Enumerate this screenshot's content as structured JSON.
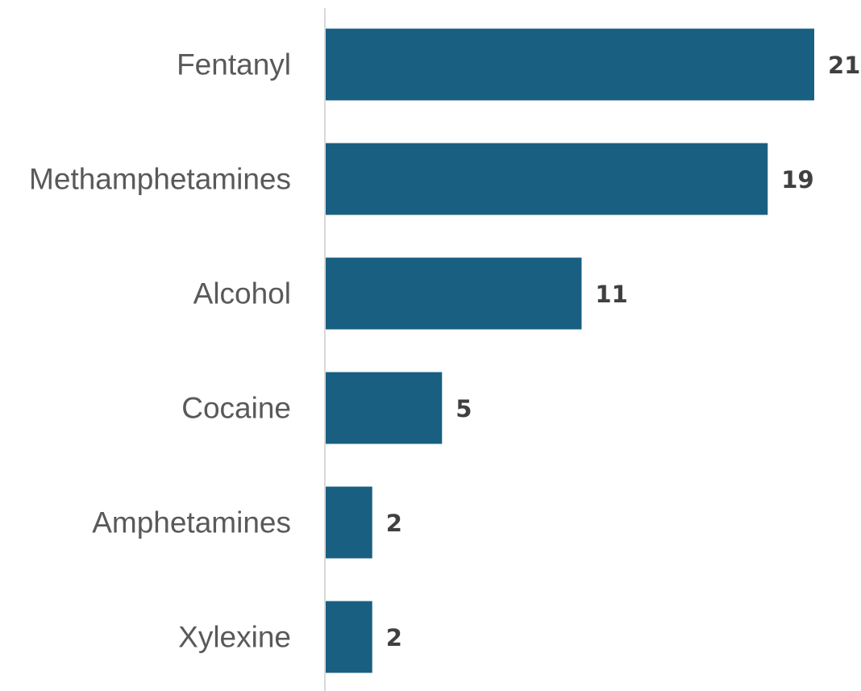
{
  "chart_data": {
    "type": "bar",
    "orientation": "horizontal",
    "title": "",
    "xlabel": "",
    "ylabel": "",
    "categories": [
      "Fentanyl",
      "Methamphetamines",
      "Alcohol",
      "Cocaine",
      "Amphetamines",
      "Xylexine"
    ],
    "values": [
      21,
      19,
      11,
      5,
      2,
      2
    ],
    "value_labels": [
      "21",
      "19",
      "11",
      "5",
      "2",
      "2"
    ],
    "xlim": [
      0,
      21
    ],
    "grid": false,
    "legend": "none",
    "colors": {
      "bar": "#185f81",
      "axis": "#d9d9d9",
      "category_text": "#595959",
      "value_text": "#404040"
    }
  }
}
